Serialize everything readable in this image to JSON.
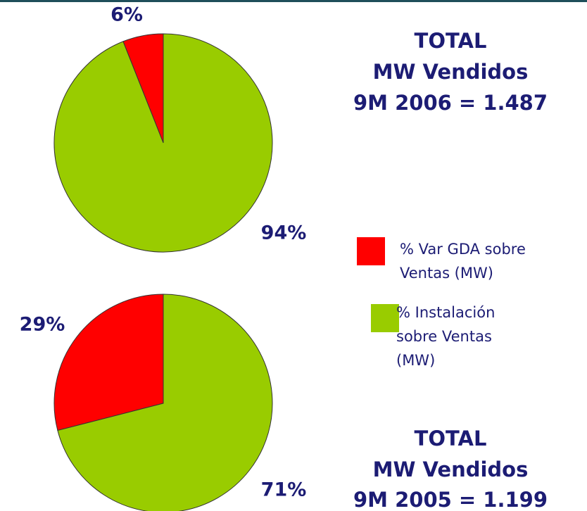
{
  "chart_data": [
    {
      "type": "pie",
      "title": [
        "TOTAL",
        "MW Vendidos",
        "9M 2006 = 1.487"
      ],
      "categories": [
        "% Var GDA sobre Ventas (MW)",
        "% Instalación sobre Ventas (MW)"
      ],
      "values": [
        6,
        94
      ],
      "value_labels": [
        "6%",
        "94%"
      ],
      "colors": [
        "#ff0000",
        "#99cc00"
      ],
      "legend": "right"
    },
    {
      "type": "pie",
      "title": [
        "TOTAL",
        "MW Vendidos",
        "9M 2005 = 1.199"
      ],
      "categories": [
        "% Var GDA sobre Ventas (MW)",
        "% Instalación sobre Ventas (MW)"
      ],
      "values": [
        29,
        71
      ],
      "value_labels": [
        "29%",
        "71%"
      ],
      "colors": [
        "#ff0000",
        "#99cc00"
      ]
    }
  ]
}
